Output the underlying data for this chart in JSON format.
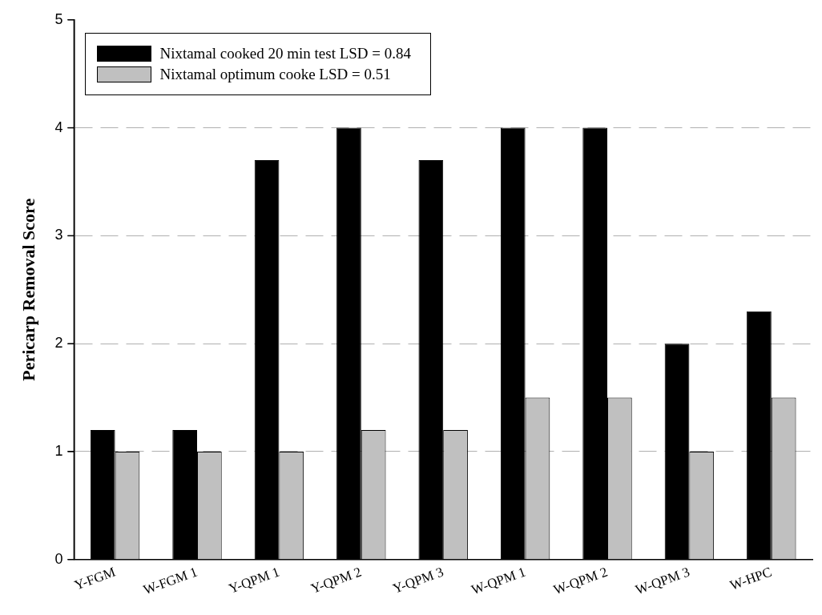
{
  "chart_data": {
    "type": "bar",
    "ylabel": "Pericarp Removal Score",
    "categories": [
      "Y-FGM",
      "W-FGM 1",
      "Y-QPM 1",
      "Y-QPM 2",
      "Y-QPM 3",
      "W-QPM 1",
      "W-QPM 2",
      "W-QPM 3",
      "W-HPC"
    ],
    "series": [
      {
        "name": "Nixtamal cooked 20 min test LSD = 0.84",
        "color": "#000000",
        "values": [
          1.2,
          1.2,
          3.7,
          4.0,
          3.7,
          4.0,
          4.0,
          2.0,
          2.3
        ]
      },
      {
        "name": "Nixtamal optimum cooke LSD = 0.51",
        "color": "#c0c0c0",
        "values": [
          1.0,
          1.0,
          1.0,
          1.2,
          1.2,
          1.5,
          1.5,
          1.0,
          1.5
        ]
      }
    ],
    "ylim": [
      0,
      5
    ],
    "yticks": [
      0,
      1,
      2,
      3,
      4,
      5
    ],
    "grid": "y",
    "legend": "top left"
  }
}
